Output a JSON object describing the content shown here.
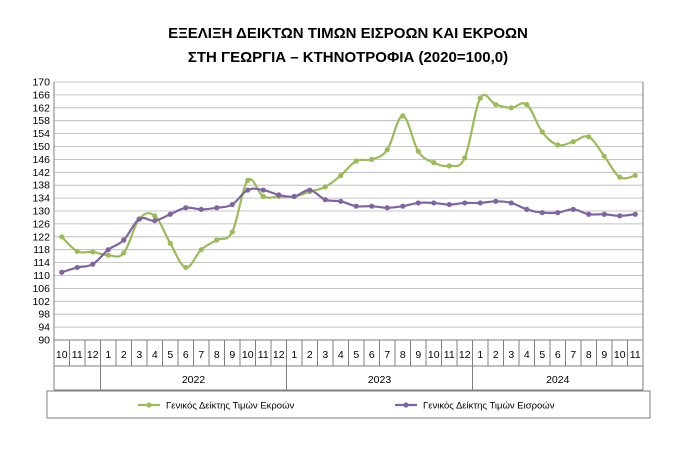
{
  "chart_data": {
    "type": "line",
    "title_line1": "ΕΞΕΛΙΞΗ ΔΕΙΚΤΩΝ ΤΙΜΩΝ ΕΙΣΡΟΩΝ ΚΑΙ ΕΚΡΟΩΝ",
    "title_line2": "ΣΤΗ ΓΕΩΡΓΙΑ – ΚΤΗΝΟΤΡΟΦΙΑ (2020=100,0)",
    "ylim": [
      90,
      170
    ],
    "yticks": [
      90,
      94,
      98,
      102,
      106,
      110,
      114,
      118,
      122,
      126,
      130,
      134,
      138,
      142,
      146,
      150,
      154,
      158,
      162,
      166,
      170
    ],
    "grid": true,
    "legend_position": "bottom",
    "months": [
      "10",
      "11",
      "12",
      "1",
      "2",
      "3",
      "4",
      "5",
      "6",
      "7",
      "8",
      "9",
      "10",
      "11",
      "12",
      "1",
      "2",
      "3",
      "4",
      "5",
      "6",
      "7",
      "8",
      "9",
      "10",
      "11",
      "12",
      "1",
      "2",
      "3",
      "4",
      "5",
      "6",
      "7",
      "8",
      "9",
      "10",
      "11"
    ],
    "years": [
      {
        "label": "2022",
        "start": 3,
        "end": 14
      },
      {
        "label": "2023",
        "start": 15,
        "end": 26
      },
      {
        "label": "2024",
        "start": 27,
        "end": 37
      }
    ],
    "series": [
      {
        "name": "Γενικός Δείκτης Τιμών Εκροών",
        "color": "#9bbb59",
        "values": [
          122.0,
          117.5,
          117.3,
          116.3,
          117.0,
          127.5,
          128.5,
          120.0,
          112.5,
          118.0,
          121.0,
          123.5,
          139.5,
          134.5,
          134.5,
          134.5,
          136.0,
          137.5,
          141.0,
          145.5,
          146.0,
          149.0,
          159.5,
          148.5,
          145.0,
          144.0,
          146.5,
          165.0,
          163.0,
          162.0,
          163.0,
          154.5,
          150.5,
          151.5,
          153.0,
          147.0,
          140.5,
          141.0
        ]
      },
      {
        "name": "Γενικός Δείκτης Τιμών Εισροών",
        "color": "#8064a2",
        "values": [
          111.0,
          112.5,
          113.5,
          118.0,
          121.0,
          127.5,
          127.0,
          129.0,
          131.0,
          130.5,
          131.0,
          132.0,
          136.5,
          136.5,
          135.0,
          134.5,
          136.5,
          133.5,
          133.0,
          131.5,
          131.5,
          131.0,
          131.5,
          132.5,
          132.5,
          132.0,
          132.5,
          132.5,
          133.0,
          132.5,
          130.5,
          129.5,
          129.5,
          130.5,
          129.0,
          129.0,
          128.5,
          129.0
        ]
      }
    ]
  }
}
